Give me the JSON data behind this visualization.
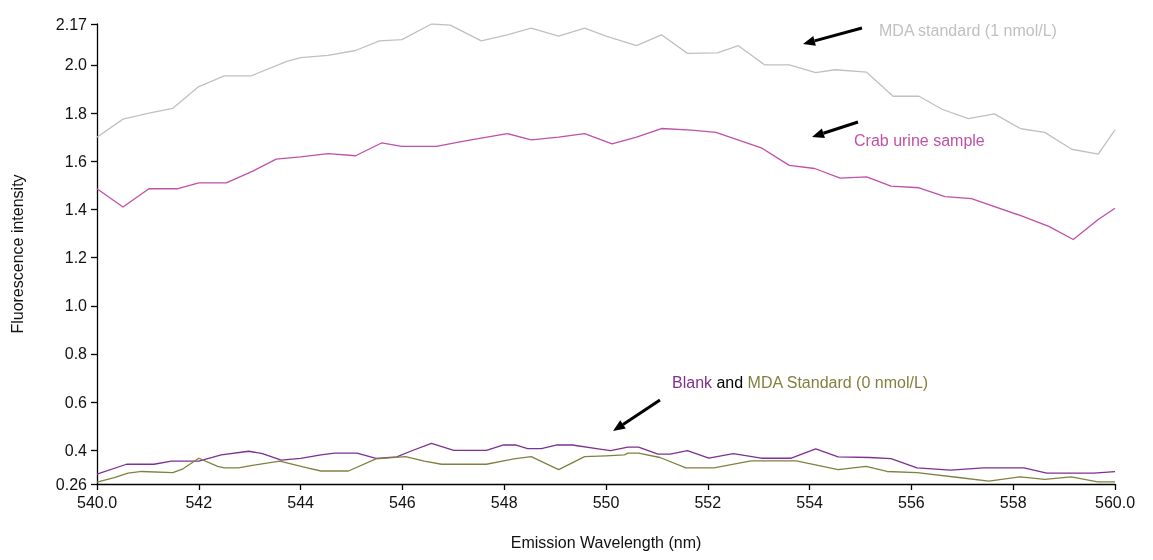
{
  "chart_data": {
    "type": "line",
    "xlabel": "Emission Wavelength (nm)",
    "ylabel": "Fluorescence intensity",
    "annotations": [
      "and"
    ],
    "xlim": [
      540,
      560
    ],
    "ylim": [
      0.26,
      2.17
    ],
    "xticks": [
      {
        "value": 540,
        "label": "540.0"
      },
      542,
      544,
      546,
      548,
      550,
      552,
      554,
      556,
      558,
      {
        "value": 560,
        "label": "560.0"
      }
    ],
    "yticks": [
      0.26,
      0.4,
      0.6,
      0.8,
      {
        "value": 1,
        "label": "1.0"
      },
      1.2,
      1.4,
      1.6,
      1.8,
      {
        "value": 2,
        "label": "2.0"
      },
      2.17
    ],
    "series": [
      {
        "name": "MDA standard (1 nmol/L)",
        "color": "#c0c0c0",
        "x": [
          540.0,
          540.51,
          541.02,
          541.49,
          542.0,
          542.5,
          543.03,
          543.73,
          544.0,
          544.54,
          545.08,
          545.55,
          545.99,
          546.57,
          546.94,
          547.55,
          548.06,
          548.53,
          549.07,
          549.58,
          550.0,
          550.6,
          551.09,
          551.6,
          552.19,
          552.6,
          553.12,
          553.6,
          554.12,
          554.5,
          555.12,
          555.64,
          556.15,
          556.6,
          557.12,
          557.63,
          558.15,
          558.62,
          559.15,
          559.67,
          560.0
        ],
        "values": [
          1.7,
          1.775,
          1.8,
          1.82,
          1.91,
          1.955,
          1.955,
          2.015,
          2.03,
          2.04,
          2.06,
          2.1,
          2.105,
          2.17,
          2.165,
          2.1,
          2.125,
          2.153,
          2.12,
          2.153,
          2.12,
          2.08,
          2.125,
          2.048,
          2.05,
          2.08,
          2.0,
          2.0,
          1.968,
          1.98,
          1.97,
          1.87,
          1.87,
          1.816,
          1.777,
          1.797,
          1.735,
          1.72,
          1.65,
          1.63,
          1.73
        ]
      },
      {
        "name": "Crab urine sample",
        "color": "#c050a8",
        "x": [
          540.0,
          540.51,
          541.02,
          541.59,
          542.0,
          542.54,
          543.05,
          543.52,
          544.0,
          544.54,
          545.08,
          545.59,
          545.99,
          546.67,
          547.18,
          548.06,
          548.53,
          549.07,
          549.58,
          550.12,
          550.6,
          551.09,
          551.68,
          552.16,
          553.05,
          553.6,
          554.1,
          554.6,
          555.12,
          555.6,
          556.15,
          556.66,
          557.18,
          558.15,
          558.7,
          559.18,
          559.67,
          560.0
        ],
        "values": [
          1.486,
          1.41,
          1.486,
          1.486,
          1.51,
          1.51,
          1.558,
          1.609,
          1.618,
          1.632,
          1.623,
          1.676,
          1.662,
          1.662,
          1.683,
          1.715,
          1.689,
          1.7,
          1.715,
          1.672,
          1.7,
          1.736,
          1.729,
          1.72,
          1.656,
          1.583,
          1.57,
          1.53,
          1.535,
          1.497,
          1.49,
          1.453,
          1.445,
          1.374,
          1.33,
          1.275,
          1.358,
          1.405
        ]
      },
      {
        "name": "Blank",
        "color": "#7f2f8f",
        "x": [
          540.0,
          540.58,
          541.12,
          541.46,
          542.0,
          542.44,
          542.98,
          543.25,
          543.62,
          544.0,
          544.4,
          544.67,
          545.11,
          545.48,
          545.89,
          546.16,
          546.57,
          547.01,
          547.65,
          547.99,
          548.22,
          548.46,
          548.73,
          549.04,
          549.34,
          549.88,
          550.09,
          550.43,
          550.64,
          551.02,
          551.26,
          551.6,
          552.02,
          552.5,
          553.05,
          553.64,
          554.12,
          554.56,
          555.18,
          555.6,
          556.11,
          556.77,
          557.42,
          558.21,
          558.66,
          559.58,
          560.0
        ],
        "values": [
          0.301,
          0.342,
          0.342,
          0.355,
          0.355,
          0.381,
          0.396,
          0.386,
          0.359,
          0.366,
          0.381,
          0.388,
          0.388,
          0.366,
          0.373,
          0.396,
          0.429,
          0.4,
          0.4,
          0.422,
          0.422,
          0.407,
          0.407,
          0.422,
          0.422,
          0.405,
          0.399,
          0.413,
          0.413,
          0.384,
          0.384,
          0.399,
          0.367,
          0.386,
          0.367,
          0.367,
          0.406,
          0.373,
          0.37,
          0.365,
          0.327,
          0.318,
          0.327,
          0.327,
          0.305,
          0.305,
          0.311
        ]
      },
      {
        "name": "MDA Standard (0 nmol/L)",
        "color": "#808040",
        "x": [
          540.0,
          540.34,
          540.61,
          540.88,
          541.49,
          541.69,
          542.0,
          542.37,
          542.5,
          542.78,
          543.05,
          543.59,
          544.13,
          544.4,
          544.94,
          545.48,
          546.06,
          546.43,
          546.77,
          547.65,
          548.19,
          548.53,
          549.07,
          549.58,
          550.0,
          550.36,
          550.43,
          550.64,
          551.06,
          551.57,
          552.12,
          552.85,
          553.74,
          554.56,
          555.11,
          555.52,
          556.11,
          556.97,
          557.52,
          558.14,
          558.62,
          559.14,
          559.66,
          560.0
        ],
        "values": [
          0.268,
          0.286,
          0.305,
          0.312,
          0.307,
          0.323,
          0.367,
          0.333,
          0.327,
          0.327,
          0.337,
          0.355,
          0.327,
          0.314,
          0.314,
          0.364,
          0.374,
          0.355,
          0.342,
          0.342,
          0.364,
          0.374,
          0.32,
          0.374,
          0.377,
          0.381,
          0.388,
          0.388,
          0.37,
          0.327,
          0.327,
          0.356,
          0.356,
          0.32,
          0.333,
          0.312,
          0.307,
          0.286,
          0.272,
          0.29,
          0.279,
          0.29,
          0.269,
          0.269
        ]
      }
    ]
  }
}
